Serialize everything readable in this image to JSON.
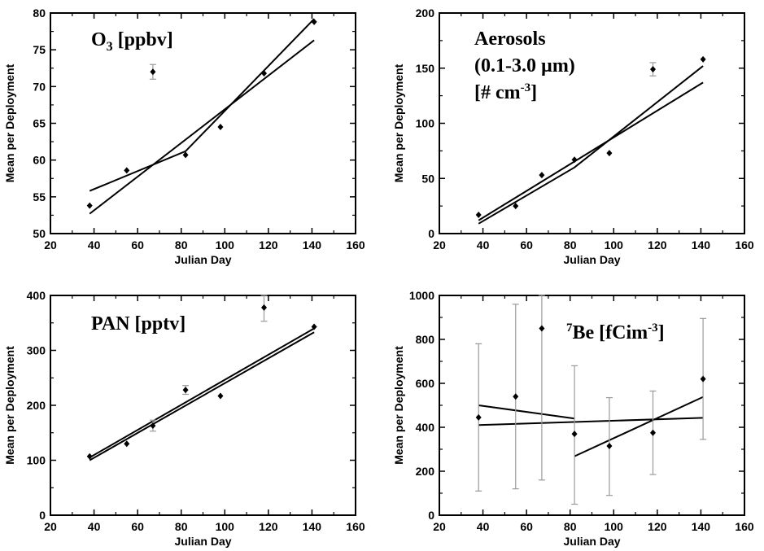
{
  "chart_data": [
    {
      "type": "scatter",
      "panel": "top-left",
      "title_main": "O",
      "title_sub": "3",
      "title_rest": " [ppbv]",
      "xlabel": "Julian Day",
      "ylabel": "Mean per Deployment",
      "xlim": [
        20,
        160
      ],
      "ylim": [
        50,
        80
      ],
      "xticks": [
        "20",
        "40",
        "60",
        "80",
        "100",
        "120",
        "140",
        "160"
      ],
      "yticks": [
        "50",
        "55",
        "60",
        "65",
        "70",
        "75",
        "80"
      ],
      "points": [
        {
          "x": 38,
          "y": 53.8
        },
        {
          "x": 55,
          "y": 58.6
        },
        {
          "x": 67,
          "y": 72.0,
          "err": 1.0
        },
        {
          "x": 82,
          "y": 60.7
        },
        {
          "x": 98,
          "y": 64.5
        },
        {
          "x": 118,
          "y": 71.8
        },
        {
          "x": 141,
          "y": 78.8
        }
      ],
      "lines": [
        [
          [
            38,
            52.7
          ],
          [
            141,
            76.3
          ]
        ],
        [
          [
            38,
            55.8
          ],
          [
            82,
            61.2
          ],
          [
            141,
            79.2
          ]
        ]
      ]
    },
    {
      "type": "scatter",
      "panel": "top-right",
      "title_lines": [
        "Aerosols",
        "(0.1-3.0 µm)"
      ],
      "title_last_pre": "[# cm",
      "title_last_sup": "-3",
      "title_last_post": "]",
      "xlabel": "Julian Day",
      "ylabel": "Mean per Deployment",
      "xlim": [
        20,
        160
      ],
      "ylim": [
        0,
        200
      ],
      "xticks": [
        "20",
        "40",
        "60",
        "80",
        "100",
        "120",
        "140",
        "160"
      ],
      "yticks": [
        "0",
        "50",
        "100",
        "150",
        "200"
      ],
      "points": [
        {
          "x": 38,
          "y": 17
        },
        {
          "x": 55,
          "y": 25
        },
        {
          "x": 67,
          "y": 53
        },
        {
          "x": 82,
          "y": 67
        },
        {
          "x": 98,
          "y": 73
        },
        {
          "x": 118,
          "y": 149,
          "err": 6
        },
        {
          "x": 141,
          "y": 158
        }
      ],
      "lines": [
        [
          [
            38,
            12
          ],
          [
            141,
            137
          ]
        ],
        [
          [
            38,
            9
          ],
          [
            82,
            60
          ],
          [
            141,
            152
          ]
        ]
      ]
    },
    {
      "type": "scatter",
      "panel": "bottom-left",
      "title_text": "PAN [pptv]",
      "xlabel": "Julian Day",
      "ylabel": "Mean per Deployment",
      "xlim": [
        20,
        160
      ],
      "ylim": [
        0,
        400
      ],
      "xticks": [
        "20",
        "40",
        "60",
        "80",
        "100",
        "120",
        "140",
        "160"
      ],
      "yticks": [
        "0",
        "100",
        "200",
        "300",
        "400"
      ],
      "points": [
        {
          "x": 38,
          "y": 107
        },
        {
          "x": 55,
          "y": 130
        },
        {
          "x": 67,
          "y": 163,
          "err": 10
        },
        {
          "x": 82,
          "y": 228,
          "err": 8
        },
        {
          "x": 98,
          "y": 217
        },
        {
          "x": 118,
          "y": 378,
          "err": 25
        },
        {
          "x": 141,
          "y": 343
        }
      ],
      "lines": [
        [
          [
            38,
            100
          ],
          [
            141,
            333
          ]
        ],
        [
          [
            38,
            105
          ],
          [
            141,
            340
          ]
        ]
      ]
    },
    {
      "type": "scatter",
      "panel": "bottom-right",
      "title_sup": "7",
      "title_mid": "Be [fCim",
      "title_sup2": "-3",
      "title_end": "]",
      "xlabel": "Julian Day",
      "ylabel": "Mean per Deployment",
      "xlim": [
        20,
        160
      ],
      "ylim": [
        0,
        1000
      ],
      "xticks": [
        "20",
        "40",
        "60",
        "80",
        "100",
        "120",
        "140",
        "160"
      ],
      "yticks": [
        "0",
        "200",
        "400",
        "600",
        "800",
        "1000"
      ],
      "points": [
        {
          "x": 38,
          "y": 445,
          "lo": 110,
          "hi": 780
        },
        {
          "x": 55,
          "y": 540,
          "lo": 120,
          "hi": 960
        },
        {
          "x": 67,
          "y": 850,
          "lo": 160,
          "hi": 1000
        },
        {
          "x": 82,
          "y": 370,
          "lo": 50,
          "hi": 680
        },
        {
          "x": 98,
          "y": 315,
          "lo": 90,
          "hi": 535
        },
        {
          "x": 118,
          "y": 375,
          "lo": 185,
          "hi": 565
        },
        {
          "x": 141,
          "y": 620,
          "lo": 345,
          "hi": 895
        }
      ],
      "lines": [
        [
          [
            38,
            410
          ],
          [
            141,
            443
          ]
        ],
        [
          [
            38,
            500
          ],
          [
            82,
            440
          ]
        ],
        [
          [
            82,
            268
          ],
          [
            141,
            538
          ]
        ]
      ]
    }
  ]
}
